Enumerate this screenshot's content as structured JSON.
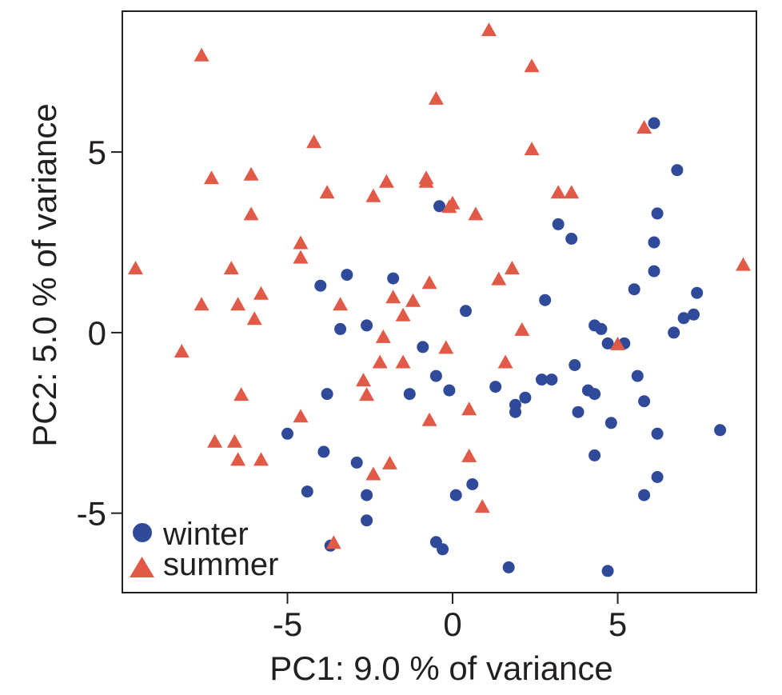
{
  "chart_data": {
    "type": "scatter",
    "title": "",
    "xlabel": "PC1: 9.0 % of variance",
    "ylabel": "PC2: 5.0 % of variance",
    "xlim": [
      -10,
      9.2
    ],
    "ylim": [
      -7.2,
      8.9
    ],
    "xticks": [
      -5,
      0,
      5
    ],
    "yticks": [
      -5,
      0,
      5
    ],
    "grid": false,
    "legend_position": "bottom-left",
    "series": [
      {
        "name": "winter",
        "marker": "circle",
        "color": "#2e4a99",
        "points": [
          [
            6.1,
            5.8
          ],
          [
            6.8,
            4.5
          ],
          [
            -0.4,
            3.5
          ],
          [
            6.2,
            3.3
          ],
          [
            3.2,
            3.0
          ],
          [
            3.6,
            2.6
          ],
          [
            6.1,
            2.5
          ],
          [
            6.1,
            1.7
          ],
          [
            -3.2,
            1.6
          ],
          [
            -1.8,
            1.5
          ],
          [
            -4.0,
            1.3
          ],
          [
            5.5,
            1.2
          ],
          [
            7.4,
            1.1
          ],
          [
            2.8,
            0.9
          ],
          [
            0.4,
            0.6
          ],
          [
            7.3,
            0.5
          ],
          [
            7.0,
            0.4
          ],
          [
            -2.6,
            0.2
          ],
          [
            4.3,
            0.2
          ],
          [
            -3.4,
            0.1
          ],
          [
            4.5,
            0.1
          ],
          [
            6.7,
            0.0
          ],
          [
            4.7,
            -0.3
          ],
          [
            5.2,
            -0.3
          ],
          [
            -0.9,
            -0.4
          ],
          [
            3.7,
            -0.9
          ],
          [
            -0.5,
            -1.2
          ],
          [
            5.6,
            -1.2
          ],
          [
            2.7,
            -1.3
          ],
          [
            3.0,
            -1.3
          ],
          [
            1.3,
            -1.5
          ],
          [
            -0.1,
            -1.6
          ],
          [
            4.1,
            -1.6
          ],
          [
            -3.8,
            -1.7
          ],
          [
            -1.3,
            -1.7
          ],
          [
            4.3,
            -1.7
          ],
          [
            2.2,
            -1.8
          ],
          [
            5.8,
            -1.9
          ],
          [
            1.9,
            -2.0
          ],
          [
            1.9,
            -2.2
          ],
          [
            3.8,
            -2.2
          ],
          [
            4.8,
            -2.5
          ],
          [
            8.1,
            -2.7
          ],
          [
            -5.0,
            -2.8
          ],
          [
            6.2,
            -2.8
          ],
          [
            -3.9,
            -3.3
          ],
          [
            -2.9,
            -3.6
          ],
          [
            4.3,
            -3.4
          ],
          [
            6.2,
            -4.0
          ],
          [
            -4.4,
            -4.4
          ],
          [
            0.6,
            -4.2
          ],
          [
            -2.6,
            -4.5
          ],
          [
            0.1,
            -4.5
          ],
          [
            5.8,
            -4.5
          ],
          [
            -2.6,
            -5.2
          ],
          [
            -3.7,
            -5.9
          ],
          [
            -0.5,
            -5.8
          ],
          [
            -0.3,
            -6.0
          ],
          [
            1.7,
            -6.5
          ],
          [
            4.7,
            -6.6
          ]
        ]
      },
      {
        "name": "summer",
        "marker": "triangle",
        "color": "#e05a47",
        "points": [
          [
            1.1,
            8.4
          ],
          [
            -7.6,
            7.7
          ],
          [
            2.4,
            7.4
          ],
          [
            -0.5,
            6.5
          ],
          [
            5.8,
            5.7
          ],
          [
            -4.2,
            5.3
          ],
          [
            2.4,
            5.1
          ],
          [
            -7.3,
            4.3
          ],
          [
            -6.1,
            4.4
          ],
          [
            -2.0,
            4.2
          ],
          [
            -0.8,
            4.2
          ],
          [
            -0.8,
            4.3
          ],
          [
            -3.8,
            3.9
          ],
          [
            -2.4,
            3.8
          ],
          [
            3.2,
            3.9
          ],
          [
            3.6,
            3.9
          ],
          [
            0.0,
            3.6
          ],
          [
            -0.1,
            3.5
          ],
          [
            0.7,
            3.3
          ],
          [
            -6.1,
            3.3
          ],
          [
            -4.6,
            2.5
          ],
          [
            -4.6,
            2.1
          ],
          [
            -9.6,
            1.8
          ],
          [
            -6.7,
            1.8
          ],
          [
            1.8,
            1.8
          ],
          [
            8.8,
            1.9
          ],
          [
            1.4,
            1.5
          ],
          [
            -0.7,
            1.4
          ],
          [
            -5.8,
            1.1
          ],
          [
            -1.8,
            1.0
          ],
          [
            -1.2,
            0.9
          ],
          [
            -7.6,
            0.8
          ],
          [
            -6.5,
            0.8
          ],
          [
            -3.4,
            0.8
          ],
          [
            -6.0,
            0.4
          ],
          [
            -1.5,
            0.5
          ],
          [
            2.1,
            0.1
          ],
          [
            -2.1,
            -0.1
          ],
          [
            -0.2,
            -0.4
          ],
          [
            5.0,
            -0.3
          ],
          [
            -8.2,
            -0.5
          ],
          [
            -2.2,
            -0.8
          ],
          [
            -1.5,
            -0.8
          ],
          [
            1.6,
            -0.8
          ],
          [
            -2.7,
            -1.3
          ],
          [
            -6.4,
            -1.7
          ],
          [
            -2.6,
            -1.7
          ],
          [
            0.5,
            -2.1
          ],
          [
            -4.6,
            -2.3
          ],
          [
            -0.7,
            -2.4
          ],
          [
            -7.2,
            -3.0
          ],
          [
            -6.6,
            -3.0
          ],
          [
            -6.5,
            -3.5
          ],
          [
            -5.8,
            -3.5
          ],
          [
            -1.9,
            -3.6
          ],
          [
            -2.4,
            -3.9
          ],
          [
            0.5,
            -3.4
          ],
          [
            0.9,
            -4.8
          ],
          [
            -3.6,
            -5.8
          ]
        ]
      }
    ]
  }
}
